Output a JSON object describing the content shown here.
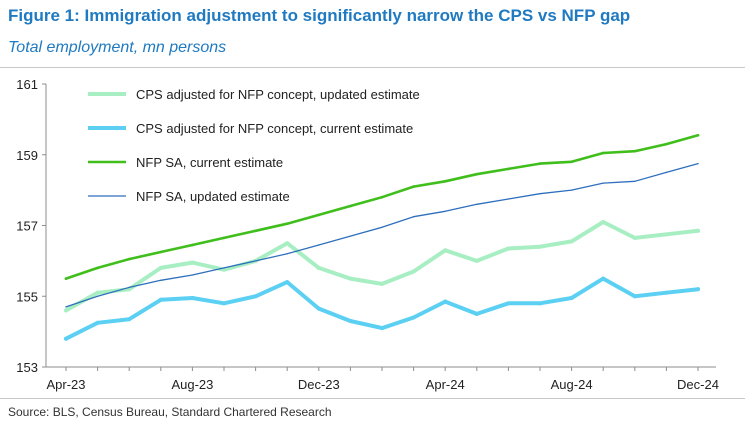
{
  "header": {
    "title": "Figure 1: Immigration adjustment to significantly narrow the CPS vs NFP gap",
    "subtitle": "Total employment, mn persons"
  },
  "footer": {
    "source": "Source: BLS, Census Bureau, Standard Chartered Research"
  },
  "colors": {
    "title": "#1f7ac1",
    "cps_updated": "#a7eec3",
    "cps_current": "#5bd0f3",
    "nfp_current": "#3fbe1c",
    "nfp_updated": "#2e6fbd",
    "axis": "#8c8c8c"
  },
  "chart_data": {
    "type": "line",
    "title": "Immigration adjustment to significantly narrow the CPS vs NFP gap",
    "xlabel": "",
    "ylabel": "Total employment, mn persons",
    "ylim": [
      153,
      161
    ],
    "yticks": [
      153,
      155,
      157,
      159,
      161
    ],
    "x": [
      "Apr-23",
      "May-23",
      "Jun-23",
      "Jul-23",
      "Aug-23",
      "Sep-23",
      "Oct-23",
      "Nov-23",
      "Dec-23",
      "Jan-24",
      "Feb-24",
      "Mar-24",
      "Apr-24",
      "May-24",
      "Jun-24",
      "Jul-24",
      "Aug-24",
      "Sep-24",
      "Oct-24",
      "Nov-24",
      "Dec-24"
    ],
    "xtick_labels": [
      {
        "index": 0,
        "label": "Apr-23"
      },
      {
        "index": 4,
        "label": "Aug-23"
      },
      {
        "index": 8,
        "label": "Dec-23"
      },
      {
        "index": 12,
        "label": "Apr-24"
      },
      {
        "index": 16,
        "label": "Aug-24"
      },
      {
        "index": 20,
        "label": "Dec-24"
      }
    ],
    "legend_position": "top-left",
    "grid": false,
    "series": [
      {
        "key": "cps_updated",
        "name": "CPS adjusted for NFP concept, updated estimate",
        "width": 4,
        "values": [
          154.6,
          155.1,
          155.2,
          155.8,
          155.95,
          155.75,
          156.0,
          156.5,
          155.8,
          155.5,
          155.35,
          155.7,
          156.3,
          156.0,
          156.35,
          156.4,
          156.55,
          157.1,
          156.65,
          156.75,
          156.85
        ]
      },
      {
        "key": "cps_current",
        "name": "CPS adjusted for NFP concept, current estimate",
        "width": 4,
        "values": [
          153.8,
          154.25,
          154.35,
          154.9,
          154.95,
          154.8,
          155.0,
          155.4,
          154.65,
          154.3,
          154.1,
          154.4,
          154.85,
          154.5,
          154.8,
          154.8,
          154.95,
          155.5,
          155.0,
          155.1,
          155.2
        ]
      },
      {
        "key": "nfp_current",
        "name": "NFP SA, current estimate",
        "width": 2.6,
        "values": [
          155.5,
          155.8,
          156.05,
          156.25,
          156.45,
          156.65,
          156.85,
          157.05,
          157.3,
          157.55,
          157.8,
          158.1,
          158.25,
          158.45,
          158.6,
          158.75,
          158.8,
          159.05,
          159.1,
          159.3,
          159.55
        ]
      },
      {
        "key": "nfp_updated",
        "name": "NFP SA, updated estimate",
        "width": 1.3,
        "values": [
          154.7,
          155.0,
          155.25,
          155.45,
          155.6,
          155.8,
          156.0,
          156.2,
          156.45,
          156.7,
          156.95,
          157.25,
          157.4,
          157.6,
          157.75,
          157.9,
          158.0,
          158.2,
          158.25,
          158.5,
          158.75
        ]
      }
    ]
  }
}
